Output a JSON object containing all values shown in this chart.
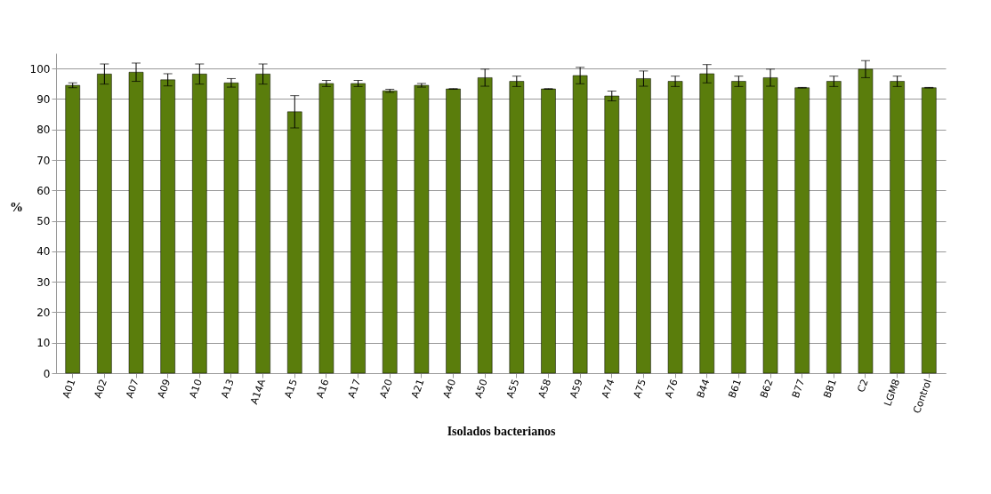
{
  "chart_data": {
    "type": "bar",
    "xlabel": "Isolados bacterianos",
    "ylabel": "%",
    "categories": [
      "A01",
      "A02",
      "A07",
      "A09",
      "A10",
      "A13",
      "A14A",
      "A15",
      "A16",
      "A17",
      "A20",
      "A21",
      "A40",
      "A50",
      "A55",
      "A58",
      "A59",
      "A74",
      "A75",
      "A76",
      "B44",
      "B61",
      "B62",
      "B77",
      "B81",
      "C2",
      "LGM8",
      "Control"
    ],
    "values": [
      94.5,
      98.2,
      98.8,
      96.3,
      98.2,
      95.3,
      98.2,
      85.8,
      95.1,
      95.1,
      92.7,
      94.5,
      93.3,
      97.0,
      95.8,
      93.3,
      97.7,
      91.0,
      96.7,
      95.8,
      98.3,
      95.8,
      97.0,
      93.7,
      95.8,
      99.8,
      95.8,
      93.7
    ],
    "errors": [
      0.8,
      3.3,
      3,
      2,
      3.3,
      1.4,
      3.3,
      5.3,
      1,
      1,
      0.5,
      0.6,
      0.1,
      2.8,
      1.7,
      0.1,
      2.7,
      1.6,
      2.5,
      1.7,
      3,
      1.7,
      2.8,
      0.1,
      1.7,
      2.8,
      1.7,
      0.1
    ],
    "color": "#5a7d0c",
    "ylim": [
      0,
      105
    ],
    "yticks": [
      0,
      10,
      20,
      30,
      40,
      50,
      60,
      70,
      80,
      90,
      100
    ],
    "grid": "y"
  }
}
